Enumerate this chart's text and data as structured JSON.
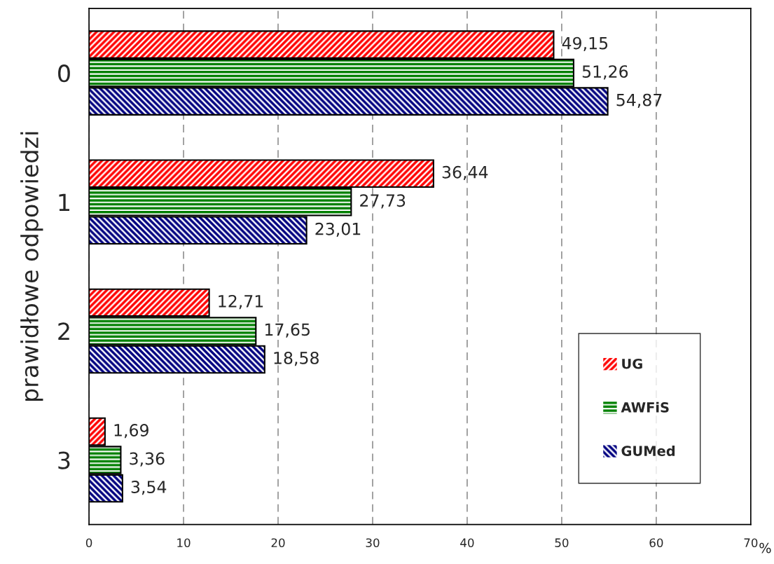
{
  "chart_data": {
    "type": "bar",
    "orientation": "horizontal",
    "ylabel": "prawidłowe odpowiedzi",
    "xlabel": "%",
    "categories": [
      "0",
      "1",
      "2",
      "3"
    ],
    "series": [
      {
        "name": "UG",
        "color": "#ff0000",
        "values": [
          49.15,
          36.44,
          12.71,
          1.69
        ],
        "value_labels": [
          "49,15",
          "36,44",
          "12,71",
          "1,69"
        ]
      },
      {
        "name": "AWFiS",
        "color": "#008000",
        "values": [
          51.26,
          27.73,
          17.65,
          3.36
        ],
        "value_labels": [
          "51,26",
          "27,73",
          "17,65",
          "3,36"
        ]
      },
      {
        "name": "GUMed",
        "color": "#000080",
        "values": [
          54.87,
          23.01,
          18.58,
          3.54
        ],
        "value_labels": [
          "54,87",
          "23,01",
          "18,58",
          "3,54"
        ]
      }
    ],
    "xlim": [
      0,
      70
    ],
    "xticks": [
      0,
      10,
      20,
      30,
      40,
      50,
      60,
      70
    ],
    "grid": "x",
    "legend": "bottom right"
  }
}
